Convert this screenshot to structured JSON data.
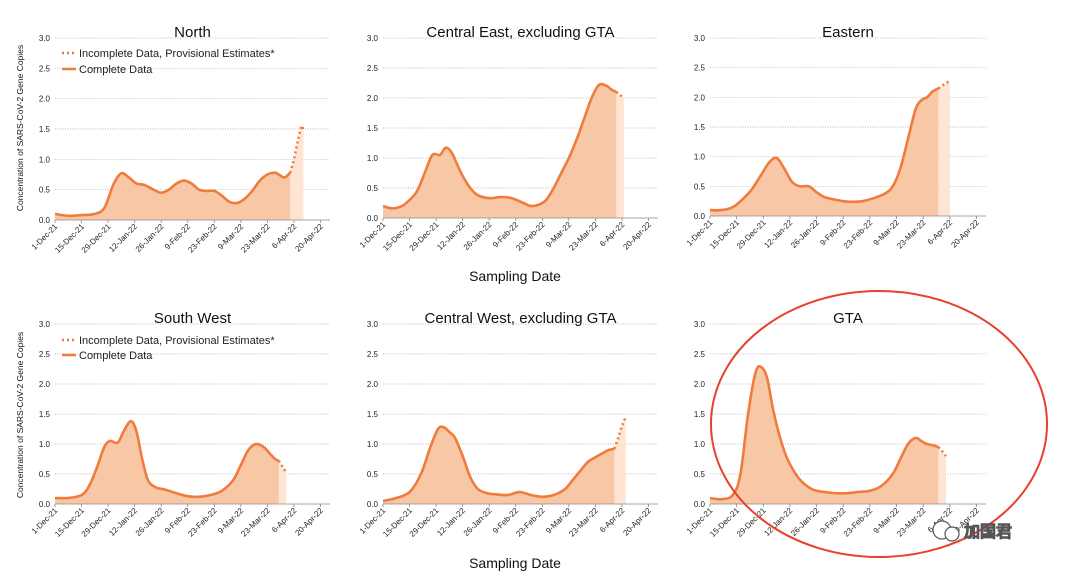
{
  "figure": {
    "x_axis_label": "Sampling Date",
    "y_axis_label": "Concentration of SARS-CoV-2 Gene Copies",
    "legend": {
      "incomplete": "Incomplete Data, Provisional Estimates*",
      "complete": "Complete Data"
    },
    "watermark": "加国君",
    "highlight": "GTA"
  },
  "colors": {
    "line": "#ef7c3d",
    "area": "#f8c7a6",
    "incomplete_area": "#fde4d3",
    "grid": "#a8a8a8",
    "highlight_ellipse": "#e8402a"
  },
  "chart_data": [
    {
      "type": "area",
      "title": "North",
      "xlabel": "Sampling Date",
      "ylabel": "Concentration of SARS-CoV-2 Gene Copies",
      "ylim": [
        0,
        3.0
      ],
      "yticks": [
        "0.0",
        "0.5",
        "1.0",
        "1.5",
        "2.0",
        "2.5",
        "3.0"
      ],
      "xticks": [
        "1-Dec-21",
        "15-Dec-21",
        "29-Dec-21",
        "12-Jan-22",
        "26-Jan-22",
        "9-Feb-22",
        "23-Feb-22",
        "9-Mar-22",
        "23-Mar-22",
        "6-Apr-22",
        "20-Apr-22"
      ],
      "x_day_range": [
        0,
        145
      ],
      "complete": {
        "x": [
          0,
          7,
          14,
          21,
          26,
          31,
          35,
          39,
          43,
          47,
          52,
          56,
          60,
          64,
          68,
          72,
          76,
          80,
          84,
          88,
          92,
          96,
          100,
          104,
          108,
          112,
          116,
          118,
          121,
          124
        ],
        "y": [
          0.1,
          0.07,
          0.08,
          0.1,
          0.2,
          0.6,
          0.77,
          0.7,
          0.6,
          0.58,
          0.5,
          0.45,
          0.5,
          0.6,
          0.65,
          0.6,
          0.5,
          0.48,
          0.48,
          0.4,
          0.3,
          0.28,
          0.35,
          0.48,
          0.65,
          0.75,
          0.78,
          0.75,
          0.7,
          0.78
        ]
      },
      "incomplete": {
        "x": [
          124,
          126,
          128,
          130,
          131
        ],
        "y": [
          0.78,
          1.0,
          1.3,
          1.55,
          1.45
        ]
      },
      "legend": true
    },
    {
      "type": "area",
      "title": "Central East, excluding GTA",
      "xlabel": "Sampling Date",
      "ylabel": "Concentration of SARS-CoV-2 Gene Copies",
      "ylim": [
        0,
        3.0
      ],
      "yticks": [
        "0.0",
        "0.5",
        "1.0",
        "1.5",
        "2.0",
        "2.5",
        "3.0"
      ],
      "xticks": [
        "1-Dec-21",
        "15-Dec-21",
        "29-Dec-21",
        "12-Jan-22",
        "26-Jan-22",
        "9-Feb-22",
        "23-Feb-22",
        "9-Mar-22",
        "23-Mar-22",
        "6-Apr-22",
        "20-Apr-22"
      ],
      "x_day_range": [
        0,
        145
      ],
      "complete": {
        "x": [
          0,
          5,
          10,
          14,
          18,
          22,
          26,
          30,
          33,
          36,
          39,
          42,
          46,
          50,
          56,
          62,
          68,
          74,
          78,
          82,
          86,
          90,
          94,
          98,
          102,
          106,
          110,
          114,
          118,
          120,
          123
        ],
        "y": [
          0.2,
          0.16,
          0.2,
          0.3,
          0.45,
          0.75,
          1.05,
          1.05,
          1.17,
          1.1,
          0.9,
          0.7,
          0.5,
          0.38,
          0.33,
          0.35,
          0.33,
          0.25,
          0.2,
          0.22,
          0.3,
          0.5,
          0.75,
          1.0,
          1.3,
          1.65,
          2.0,
          2.22,
          2.2,
          2.15,
          2.1
        ]
      },
      "incomplete": {
        "x": [
          123,
          125,
          127
        ],
        "y": [
          2.1,
          2.05,
          2.0
        ]
      },
      "legend": false
    },
    {
      "type": "area",
      "title": "Eastern",
      "xlabel": "Sampling Date",
      "ylabel": "Concentration of SARS-CoV-2 Gene Copies",
      "ylim": [
        0,
        3.0
      ],
      "yticks": [
        "0.0",
        "0.5",
        "1.0",
        "1.5",
        "2.0",
        "2.5",
        "3.0"
      ],
      "xticks": [
        "1-Dec-21",
        "15-Dec-21",
        "29-Dec-21",
        "12-Jan-22",
        "26-Jan-22",
        "9-Feb-22",
        "23-Feb-22",
        "9-Mar-22",
        "23-Mar-22",
        "6-Apr-22",
        "20-Apr-22"
      ],
      "x_day_range": [
        0,
        145
      ],
      "complete": {
        "x": [
          0,
          6,
          12,
          17,
          22,
          27,
          31,
          35,
          39,
          43,
          47,
          52,
          56,
          60,
          65,
          70,
          75,
          80,
          86,
          92,
          96,
          100,
          104,
          108,
          111,
          114,
          117,
          120
        ],
        "y": [
          0.1,
          0.1,
          0.15,
          0.28,
          0.45,
          0.7,
          0.9,
          0.98,
          0.8,
          0.58,
          0.5,
          0.5,
          0.4,
          0.32,
          0.28,
          0.25,
          0.24,
          0.25,
          0.3,
          0.38,
          0.5,
          0.8,
          1.3,
          1.8,
          1.95,
          2.0,
          2.1,
          2.15
        ]
      },
      "incomplete": {
        "x": [
          120,
          123,
          126
        ],
        "y": [
          2.15,
          2.22,
          2.28
        ]
      },
      "legend": false
    },
    {
      "type": "area",
      "title": "South West",
      "xlabel": "Sampling Date",
      "ylabel": "Concentration of SARS-CoV-2 Gene Copies",
      "ylim": [
        0,
        3.0
      ],
      "yticks": [
        "0.0",
        "0.5",
        "1.0",
        "1.5",
        "2.0",
        "2.5",
        "3.0"
      ],
      "xticks": [
        "1-Dec-21",
        "15-Dec-21",
        "29-Dec-21",
        "12-Jan-22",
        "26-Jan-22",
        "9-Feb-22",
        "23-Feb-22",
        "9-Mar-22",
        "23-Mar-22",
        "6-Apr-22",
        "20-Apr-22"
      ],
      "x_day_range": [
        0,
        145
      ],
      "complete": {
        "x": [
          0,
          7,
          14,
          18,
          22,
          26,
          29,
          33,
          36,
          40,
          43,
          46,
          49,
          53,
          58,
          64,
          70,
          76,
          82,
          88,
          94,
          98,
          102,
          106,
          110,
          113,
          116,
          118
        ],
        "y": [
          0.1,
          0.1,
          0.15,
          0.3,
          0.6,
          0.95,
          1.05,
          1.02,
          1.2,
          1.38,
          1.2,
          0.75,
          0.4,
          0.28,
          0.24,
          0.18,
          0.13,
          0.12,
          0.15,
          0.22,
          0.4,
          0.65,
          0.9,
          1.0,
          0.95,
          0.85,
          0.75,
          0.72
        ]
      },
      "incomplete": {
        "x": [
          118,
          120,
          122
        ],
        "y": [
          0.72,
          0.62,
          0.52
        ]
      },
      "legend": true
    },
    {
      "type": "area",
      "title": "Central West, excluding GTA",
      "xlabel": "Sampling Date",
      "ylabel": "Concentration of SARS-CoV-2 Gene Copies",
      "ylim": [
        0,
        3.0
      ],
      "yticks": [
        "0.0",
        "0.5",
        "1.0",
        "1.5",
        "2.0",
        "2.5",
        "3.0"
      ],
      "xticks": [
        "1-Dec-21",
        "15-Dec-21",
        "29-Dec-21",
        "12-Jan-22",
        "26-Jan-22",
        "9-Feb-22",
        "23-Feb-22",
        "9-Mar-22",
        "23-Mar-22",
        "6-Apr-22",
        "20-Apr-22"
      ],
      "x_day_range": [
        0,
        145
      ],
      "complete": {
        "x": [
          0,
          7,
          14,
          20,
          25,
          29,
          32,
          35,
          38,
          42,
          46,
          50,
          55,
          60,
          66,
          72,
          78,
          84,
          90,
          96,
          100,
          104,
          108,
          112,
          116,
          119,
          122
        ],
        "y": [
          0.05,
          0.1,
          0.2,
          0.5,
          0.95,
          1.25,
          1.28,
          1.2,
          1.1,
          0.8,
          0.45,
          0.25,
          0.18,
          0.16,
          0.15,
          0.2,
          0.15,
          0.12,
          0.15,
          0.25,
          0.4,
          0.55,
          0.7,
          0.78,
          0.85,
          0.9,
          0.92
        ]
      },
      "incomplete": {
        "x": [
          122,
          124,
          126,
          128
        ],
        "y": [
          0.92,
          1.1,
          1.3,
          1.45
        ]
      },
      "legend": false
    },
    {
      "type": "area",
      "title": "GTA",
      "xlabel": "Sampling Date",
      "ylabel": "Concentration of SARS-CoV-2 Gene Copies",
      "ylim": [
        0,
        3.0
      ],
      "yticks": [
        "0.0",
        "0.5",
        "1.0",
        "1.5",
        "2.0",
        "2.5",
        "3.0"
      ],
      "xticks": [
        "1-Dec-21",
        "15-Dec-21",
        "29-Dec-21",
        "12-Jan-22",
        "26-Jan-22",
        "9-Feb-22",
        "23-Feb-22",
        "9-Mar-22",
        "23-Mar-22",
        "6-Apr-22",
        "20-Apr-22"
      ],
      "x_day_range": [
        0,
        145
      ],
      "complete": {
        "x": [
          0,
          6,
          12,
          16,
          20,
          24,
          27,
          30,
          33,
          36,
          40,
          44,
          48,
          54,
          60,
          66,
          72,
          78,
          84,
          90,
          96,
          100,
          104,
          108,
          111,
          114,
          117,
          120
        ],
        "y": [
          0.1,
          0.08,
          0.15,
          0.5,
          1.5,
          2.2,
          2.28,
          2.1,
          1.6,
          1.2,
          0.8,
          0.55,
          0.38,
          0.24,
          0.2,
          0.18,
          0.18,
          0.2,
          0.22,
          0.3,
          0.5,
          0.75,
          1.0,
          1.1,
          1.05,
          1.0,
          0.98,
          0.95
        ]
      },
      "incomplete": {
        "x": [
          120,
          122,
          124
        ],
        "y": [
          0.95,
          0.88,
          0.8
        ]
      },
      "legend": false
    }
  ]
}
